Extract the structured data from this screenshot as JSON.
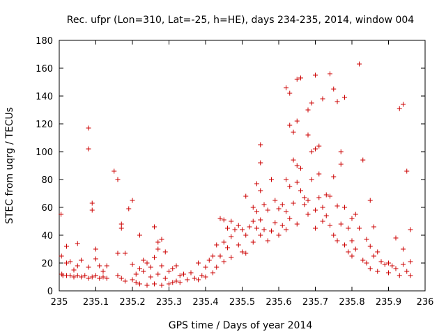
{
  "chart_data": {
    "type": "scatter",
    "title": "Rec. ufpr (Lon=310, Lat=-25, h=HE), days 234-235, 2014, window 004",
    "xlabel": "GPS time / Days of year 2014",
    "ylabel": "STEC from uqrg / TECUs",
    "xlim": [
      235,
      236
    ],
    "ylim": [
      0,
      180
    ],
    "x_ticks": [
      "235",
      "235.1",
      "235.2",
      "235.3",
      "235.4",
      "235.5",
      "235.6",
      "235.7",
      "235.8",
      "235.9",
      "236"
    ],
    "y_ticks": [
      "0",
      "20",
      "40",
      "60",
      "80",
      "100",
      "120",
      "140",
      "160",
      "180"
    ],
    "grid": false,
    "marker": "plus",
    "marker_color": "#cc0000",
    "points": [
      [
        235.005,
        55
      ],
      [
        235.006,
        25
      ],
      [
        235.007,
        12
      ],
      [
        235.01,
        11
      ],
      [
        235.02,
        32
      ],
      [
        235.02,
        20
      ],
      [
        235.02,
        11
      ],
      [
        235.03,
        21
      ],
      [
        235.03,
        11
      ],
      [
        235.04,
        15
      ],
      [
        235.04,
        10
      ],
      [
        235.05,
        34
      ],
      [
        235.05,
        18
      ],
      [
        235.05,
        11
      ],
      [
        235.06,
        22
      ],
      [
        235.06,
        10
      ],
      [
        235.07,
        11
      ],
      [
        235.08,
        117
      ],
      [
        235.08,
        102
      ],
      [
        235.08,
        17
      ],
      [
        235.08,
        9
      ],
      [
        235.09,
        63
      ],
      [
        235.09,
        58
      ],
      [
        235.09,
        10
      ],
      [
        235.1,
        30
      ],
      [
        235.1,
        23
      ],
      [
        235.1,
        11
      ],
      [
        235.11,
        18
      ],
      [
        235.11,
        9
      ],
      [
        235.12,
        14
      ],
      [
        235.12,
        10
      ],
      [
        235.13,
        18
      ],
      [
        235.13,
        9
      ],
      [
        235.15,
        86
      ],
      [
        235.16,
        80
      ],
      [
        235.16,
        27
      ],
      [
        235.16,
        11
      ],
      [
        235.17,
        48
      ],
      [
        235.17,
        45
      ],
      [
        235.17,
        9
      ],
      [
        235.18,
        27
      ],
      [
        235.18,
        7
      ],
      [
        235.19,
        59
      ],
      [
        235.2,
        65
      ],
      [
        235.2,
        19
      ],
      [
        235.2,
        8
      ],
      [
        235.21,
        12
      ],
      [
        235.21,
        6
      ],
      [
        235.22,
        40
      ],
      [
        235.22,
        16
      ],
      [
        235.22,
        5
      ],
      [
        235.23,
        22
      ],
      [
        235.23,
        14
      ],
      [
        235.24,
        20
      ],
      [
        235.24,
        4
      ],
      [
        235.25,
        17
      ],
      [
        235.25,
        10
      ],
      [
        235.26,
        46
      ],
      [
        235.26,
        24
      ],
      [
        235.26,
        5
      ],
      [
        235.27,
        35
      ],
      [
        235.27,
        30
      ],
      [
        235.27,
        12
      ],
      [
        235.28,
        37
      ],
      [
        235.28,
        18
      ],
      [
        235.28,
        4
      ],
      [
        235.29,
        28
      ],
      [
        235.29,
        9
      ],
      [
        235.3,
        14
      ],
      [
        235.3,
        5
      ],
      [
        235.31,
        16
      ],
      [
        235.31,
        6
      ],
      [
        235.32,
        18
      ],
      [
        235.32,
        7
      ],
      [
        235.33,
        11
      ],
      [
        235.33,
        6
      ],
      [
        235.34,
        12
      ],
      [
        235.35,
        8
      ],
      [
        235.36,
        13
      ],
      [
        235.37,
        9
      ],
      [
        235.38,
        20
      ],
      [
        235.38,
        8
      ],
      [
        235.39,
        11
      ],
      [
        235.4,
        17
      ],
      [
        235.4,
        10
      ],
      [
        235.41,
        22
      ],
      [
        235.42,
        25
      ],
      [
        235.42,
        13
      ],
      [
        235.43,
        33
      ],
      [
        235.43,
        17
      ],
      [
        235.44,
        52
      ],
      [
        235.44,
        25
      ],
      [
        235.45,
        51
      ],
      [
        235.45,
        35
      ],
      [
        235.45,
        21
      ],
      [
        235.46,
        45
      ],
      [
        235.46,
        31
      ],
      [
        235.47,
        50
      ],
      [
        235.47,
        39
      ],
      [
        235.47,
        24
      ],
      [
        235.48,
        44
      ],
      [
        235.49,
        47
      ],
      [
        235.49,
        33
      ],
      [
        235.5,
        44
      ],
      [
        235.5,
        28
      ],
      [
        235.51,
        68
      ],
      [
        235.51,
        40
      ],
      [
        235.51,
        27
      ],
      [
        235.52,
        46
      ],
      [
        235.53,
        60
      ],
      [
        235.53,
        50
      ],
      [
        235.53,
        35
      ],
      [
        235.54,
        77
      ],
      [
        235.54,
        57
      ],
      [
        235.54,
        45
      ],
      [
        235.55,
        105
      ],
      [
        235.55,
        92
      ],
      [
        235.55,
        72
      ],
      [
        235.55,
        51
      ],
      [
        235.55,
        40
      ],
      [
        235.56,
        62
      ],
      [
        235.56,
        44
      ],
      [
        235.57,
        58
      ],
      [
        235.57,
        36
      ],
      [
        235.58,
        80
      ],
      [
        235.58,
        43
      ],
      [
        235.59,
        65
      ],
      [
        235.59,
        49
      ],
      [
        235.6,
        59
      ],
      [
        235.6,
        40
      ],
      [
        235.61,
        62
      ],
      [
        235.61,
        47
      ],
      [
        235.62,
        146
      ],
      [
        235.62,
        80
      ],
      [
        235.62,
        57
      ],
      [
        235.62,
        44
      ],
      [
        235.63,
        142
      ],
      [
        235.63,
        119
      ],
      [
        235.63,
        75
      ],
      [
        235.63,
        52
      ],
      [
        235.64,
        114
      ],
      [
        235.64,
        94
      ],
      [
        235.64,
        63
      ],
      [
        235.65,
        152
      ],
      [
        235.65,
        122
      ],
      [
        235.65,
        90
      ],
      [
        235.65,
        78
      ],
      [
        235.65,
        48
      ],
      [
        235.66,
        153
      ],
      [
        235.66,
        88
      ],
      [
        235.66,
        72
      ],
      [
        235.67,
        67
      ],
      [
        235.67,
        62
      ],
      [
        235.68,
        130
      ],
      [
        235.68,
        112
      ],
      [
        235.68,
        65
      ],
      [
        235.68,
        55
      ],
      [
        235.69,
        135
      ],
      [
        235.69,
        100
      ],
      [
        235.69,
        80
      ],
      [
        235.7,
        155
      ],
      [
        235.7,
        102
      ],
      [
        235.7,
        58
      ],
      [
        235.7,
        45
      ],
      [
        235.71,
        104
      ],
      [
        235.71,
        84
      ],
      [
        235.71,
        67
      ],
      [
        235.72,
        138
      ],
      [
        235.72,
        60
      ],
      [
        235.72,
        50
      ],
      [
        235.73,
        69
      ],
      [
        235.73,
        54
      ],
      [
        235.74,
        156
      ],
      [
        235.74,
        68
      ],
      [
        235.74,
        47
      ],
      [
        235.75,
        145
      ],
      [
        235.75,
        82
      ],
      [
        235.75,
        40
      ],
      [
        235.76,
        136
      ],
      [
        235.76,
        61
      ],
      [
        235.76,
        36
      ],
      [
        235.77,
        100
      ],
      [
        235.77,
        91
      ],
      [
        235.77,
        48
      ],
      [
        235.78,
        139
      ],
      [
        235.78,
        60
      ],
      [
        235.78,
        33
      ],
      [
        235.79,
        45
      ],
      [
        235.79,
        28
      ],
      [
        235.8,
        52
      ],
      [
        235.8,
        36
      ],
      [
        235.8,
        25
      ],
      [
        235.81,
        55
      ],
      [
        235.81,
        30
      ],
      [
        235.82,
        163
      ],
      [
        235.82,
        45
      ],
      [
        235.83,
        94
      ],
      [
        235.83,
        22
      ],
      [
        235.84,
        37
      ],
      [
        235.84,
        20
      ],
      [
        235.85,
        65
      ],
      [
        235.85,
        32
      ],
      [
        235.85,
        16
      ],
      [
        235.86,
        46
      ],
      [
        235.86,
        25
      ],
      [
        235.87,
        28
      ],
      [
        235.87,
        14
      ],
      [
        235.88,
        21
      ],
      [
        235.89,
        19
      ],
      [
        235.9,
        20
      ],
      [
        235.9,
        13
      ],
      [
        235.91,
        18
      ],
      [
        235.92,
        38
      ],
      [
        235.92,
        16
      ],
      [
        235.93,
        131
      ],
      [
        235.93,
        11
      ],
      [
        235.94,
        134
      ],
      [
        235.94,
        30
      ],
      [
        235.94,
        19
      ],
      [
        235.95,
        86
      ],
      [
        235.95,
        14
      ],
      [
        235.96,
        44
      ],
      [
        235.96,
        21
      ],
      [
        235.96,
        11
      ]
    ]
  }
}
